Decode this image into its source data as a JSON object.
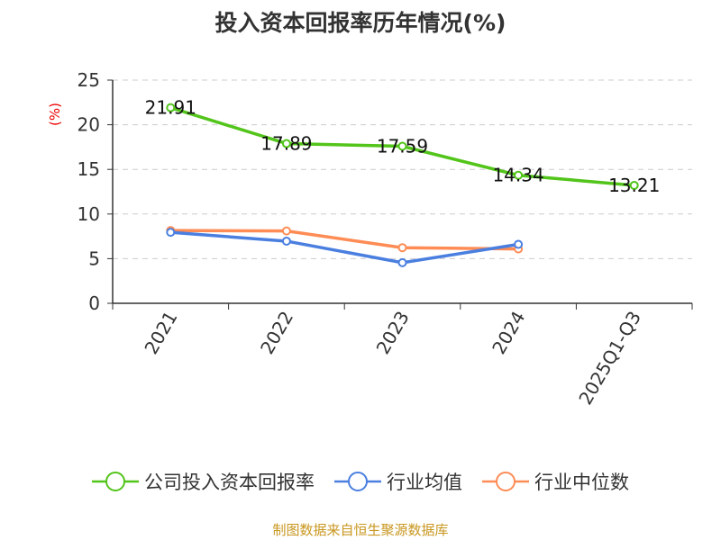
{
  "chart_data": {
    "type": "line",
    "title": "投入资本回报率历年情况(%)",
    "ylabel": "(%)",
    "categories": [
      "2021",
      "2022",
      "2023",
      "2024",
      "2025Q1-Q3"
    ],
    "ylim": [
      0,
      25
    ],
    "yticks": [
      "0",
      "5",
      "10",
      "15",
      "20",
      "25"
    ],
    "grid": true,
    "legend_position": "bottom",
    "series": [
      {
        "name": "公司投入资本回报率",
        "color": "#52c41a",
        "values": [
          21.91,
          17.89,
          17.59,
          14.34,
          13.21
        ],
        "labels": [
          "21.91",
          "17.89",
          "17.59",
          "14.34",
          "13.21"
        ]
      },
      {
        "name": "行业均值",
        "color": "#4a7fe0",
        "values": [
          7.95,
          6.96,
          4.55,
          6.6,
          null
        ]
      },
      {
        "name": "行业中位数",
        "color": "#ff8c55",
        "values": [
          8.15,
          8.1,
          6.23,
          6.09,
          null
        ]
      }
    ]
  },
  "source": "制图数据来自恒生聚源数据库"
}
